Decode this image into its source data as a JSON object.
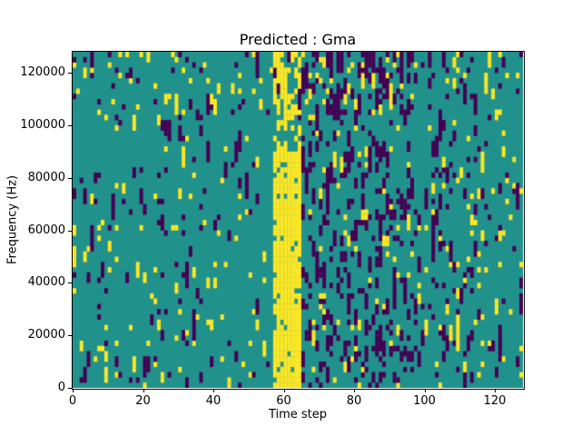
{
  "title": "Predicted : Gma",
  "chart_data": {
    "type": "heatmap",
    "title": "Predicted : Gma",
    "xlabel": "Time step",
    "ylabel": "Frequency (Hz)",
    "x_range": [
      0,
      128
    ],
    "y_range": [
      0,
      128000
    ],
    "x_ticks": [
      0,
      20,
      40,
      60,
      80,
      100,
      120
    ],
    "x_tick_labels": [
      "0",
      "20",
      "40",
      "60",
      "80",
      "100",
      "120"
    ],
    "y_ticks": [
      0,
      20000,
      40000,
      60000,
      80000,
      100000,
      120000
    ],
    "y_tick_labels": [
      "0",
      "20000",
      "40000",
      "60000",
      "80000",
      "100000",
      "120000"
    ],
    "legend": "none",
    "grid": {
      "cols": 128,
      "rows": 64
    },
    "colormap": {
      "low": "#440154",
      "mid": "#21918c",
      "high": "#fde725"
    },
    "pattern": {
      "seed": 42,
      "base_yellow_prob": 0.035,
      "base_purple_prob": 0.035,
      "yellow_band": {
        "col_start": 57,
        "col_end": 64,
        "row_max": 45,
        "prob": 0.9,
        "upper_prob": 0.28
      },
      "purple_dense": {
        "col_start": 64,
        "col_end": 95,
        "prob": 0.16
      },
      "purple_medium": {
        "col_start": 96,
        "col_end": 114,
        "prob": 0.07
      },
      "top_rows": {
        "row_min": 52,
        "yellow_mult": 1.6,
        "purple_mult": 1.3
      },
      "streak_bonus": {
        "yellow": 0.28,
        "purple": 0.38
      },
      "note": "Pseudo-random scatter over teal background; solid yellow vertical band near time step 57-64 up to ~90000 Hz; dense dark-purple streaks between time steps 65-95."
    }
  }
}
